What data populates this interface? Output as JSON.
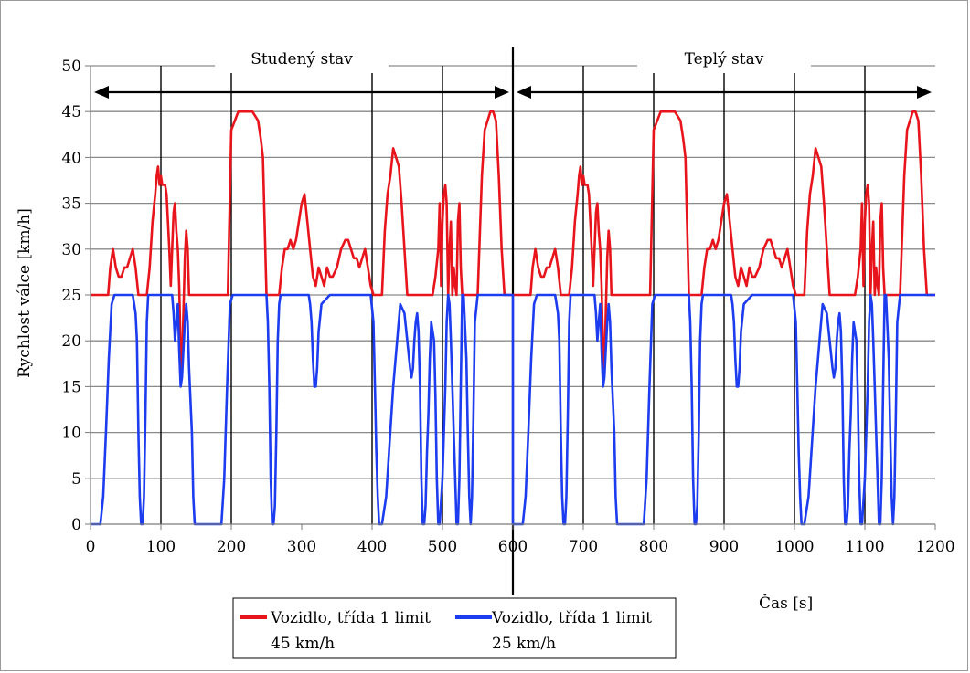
{
  "chart_data": {
    "type": "line",
    "title": "",
    "xlabel": "Čas  [s]",
    "ylabel": "Rychlost válce  [km/h]",
    "xlim": [
      0,
      1200
    ],
    "ylim": [
      0,
      50
    ],
    "xticks": [
      0,
      100,
      200,
      300,
      400,
      500,
      600,
      700,
      800,
      900,
      1000,
      1100,
      1200
    ],
    "yticks": [
      0,
      5,
      10,
      15,
      20,
      25,
      30,
      35,
      40,
      45,
      50
    ],
    "grid": "horizontal",
    "vertical_markers": [
      100,
      200,
      400,
      500,
      700,
      800,
      900,
      1000,
      1100
    ],
    "divider_x": 600,
    "phases": [
      {
        "label": "Studený stav",
        "from": 0,
        "to": 600
      },
      {
        "label": "Teplý stav",
        "from": 600,
        "to": 1200
      }
    ],
    "series": [
      {
        "name": "Vozidlo, třída 1 limit 45 km/h",
        "legend_line1": "Vozidlo, třída 1 limit",
        "legend_line2": "45 km/h",
        "color": "#e8141c",
        "x": [
          0,
          20,
          25,
          28,
          32,
          36,
          40,
          44,
          48,
          52,
          56,
          60,
          64,
          68,
          72,
          76,
          80,
          84,
          88,
          92,
          94,
          96,
          98,
          100,
          102,
          104,
          106,
          108,
          110,
          112,
          114,
          116,
          118,
          120,
          122,
          124,
          126,
          128,
          130,
          132,
          134,
          136,
          138,
          140,
          142,
          144,
          146,
          150,
          160,
          170,
          180,
          190,
          195,
          200,
          210,
          220,
          230,
          238,
          240,
          242,
          245,
          250,
          255,
          260,
          268,
          272,
          276,
          280,
          284,
          288,
          292,
          296,
          300,
          304,
          308,
          312,
          316,
          320,
          324,
          328,
          332,
          336,
          340,
          344,
          350,
          356,
          362,
          366,
          370,
          374,
          378,
          382,
          386,
          390,
          394,
          398,
          402,
          406,
          410,
          414,
          418,
          422,
          426,
          430,
          434,
          438,
          442,
          446,
          450,
          460,
          470,
          478,
          482,
          486,
          490,
          494,
          496,
          498,
          500,
          502,
          504,
          506,
          508,
          510,
          512,
          514,
          516,
          518,
          520,
          522,
          524,
          526,
          528,
          530,
          532,
          534,
          536,
          540,
          550,
          556,
          560,
          564,
          568,
          572,
          576,
          580,
          584,
          588,
          600
        ],
        "y": [
          25,
          25,
          25,
          28,
          30,
          28,
          27,
          27,
          28,
          28,
          29,
          30,
          28,
          25,
          25,
          25,
          25,
          28,
          33,
          36,
          38,
          39,
          37,
          38,
          37,
          37,
          37,
          36,
          33,
          30,
          26,
          30,
          34,
          35,
          32,
          30,
          26,
          19,
          17,
          23,
          29,
          32,
          30,
          25,
          25,
          25,
          25,
          25,
          25,
          25,
          25,
          25,
          25,
          43,
          45,
          45,
          45,
          44,
          43,
          42,
          40,
          25,
          25,
          25,
          25,
          28,
          30,
          30,
          31,
          30,
          31,
          33,
          35,
          36,
          33,
          30,
          27,
          26,
          28,
          27,
          26,
          28,
          27,
          27,
          28,
          30,
          31,
          31,
          30,
          29,
          29,
          28,
          29,
          30,
          28,
          26,
          25,
          25,
          25,
          25,
          32,
          36,
          38,
          41,
          40,
          39,
          35,
          30,
          25,
          25,
          25,
          25,
          25,
          25,
          27,
          30,
          35,
          26,
          33,
          36,
          37,
          35,
          25,
          30,
          33,
          25,
          28,
          26,
          25,
          33,
          35,
          28,
          25,
          25,
          25,
          25,
          25,
          25,
          25,
          38,
          43,
          44,
          45,
          45,
          44,
          38,
          30,
          25,
          25
        ]
      },
      {
        "name": "Vozidlo, třída 1 limit 25 km/h",
        "legend_line1": "Vozidlo, třída 1 limit",
        "legend_line2": "25 km/h",
        "color": "#1c3cf0",
        "x": [
          0,
          14,
          18,
          22,
          26,
          30,
          34,
          40,
          50,
          60,
          64,
          66,
          68,
          70,
          72,
          74,
          76,
          78,
          80,
          82,
          84,
          90,
          100,
          110,
          116,
          118,
          120,
          122,
          124,
          126,
          128,
          130,
          132,
          134,
          136,
          138,
          140,
          144,
          146,
          148,
          150,
          160,
          170,
          180,
          186,
          190,
          194,
          198,
          202,
          210,
          220,
          230,
          240,
          250,
          252,
          254,
          256,
          258,
          260,
          262,
          264,
          266,
          268,
          270,
          272,
          280,
          300,
          310,
          312,
          314,
          316,
          318,
          320,
          322,
          324,
          328,
          340,
          360,
          380,
          398,
          402,
          404,
          406,
          408,
          410,
          414,
          420,
          430,
          440,
          446,
          450,
          454,
          456,
          458,
          460,
          462,
          464,
          466,
          468,
          470,
          472,
          474,
          476,
          478,
          480,
          482,
          484,
          488,
          490,
          492,
          494,
          496,
          500,
          504,
          506,
          508,
          510,
          512,
          514,
          516,
          518,
          520,
          522,
          524,
          526,
          528,
          530,
          534,
          536,
          538,
          540,
          542,
          544,
          546,
          550,
          560,
          570,
          580,
          590,
          600
        ],
        "y": [
          0,
          0,
          3,
          10,
          18,
          24,
          25,
          25,
          25,
          25,
          23,
          20,
          10,
          3,
          0,
          0,
          3,
          12,
          22,
          25,
          25,
          25,
          25,
          25,
          25,
          23,
          20,
          22,
          24,
          19,
          15,
          16,
          19,
          22,
          24,
          22,
          17,
          10,
          3,
          0,
          0,
          0,
          0,
          0,
          0,
          5,
          15,
          24,
          25,
          25,
          25,
          25,
          25,
          25,
          22,
          15,
          5,
          0,
          0,
          2,
          10,
          20,
          24,
          25,
          25,
          25,
          25,
          25,
          24,
          22,
          18,
          15,
          15,
          17,
          21,
          24,
          25,
          25,
          25,
          25,
          22,
          15,
          8,
          3,
          0,
          0,
          3,
          15,
          24,
          23,
          20,
          17,
          16,
          17,
          20,
          22,
          23,
          21,
          15,
          5,
          0,
          0,
          2,
          8,
          12,
          18,
          22,
          20,
          14,
          5,
          0,
          0,
          5,
          15,
          22,
          25,
          24,
          20,
          15,
          10,
          5,
          0,
          0,
          5,
          15,
          25,
          25,
          18,
          10,
          3,
          0,
          3,
          12,
          22,
          25,
          25,
          25,
          25,
          25,
          25
        ]
      }
    ]
  }
}
